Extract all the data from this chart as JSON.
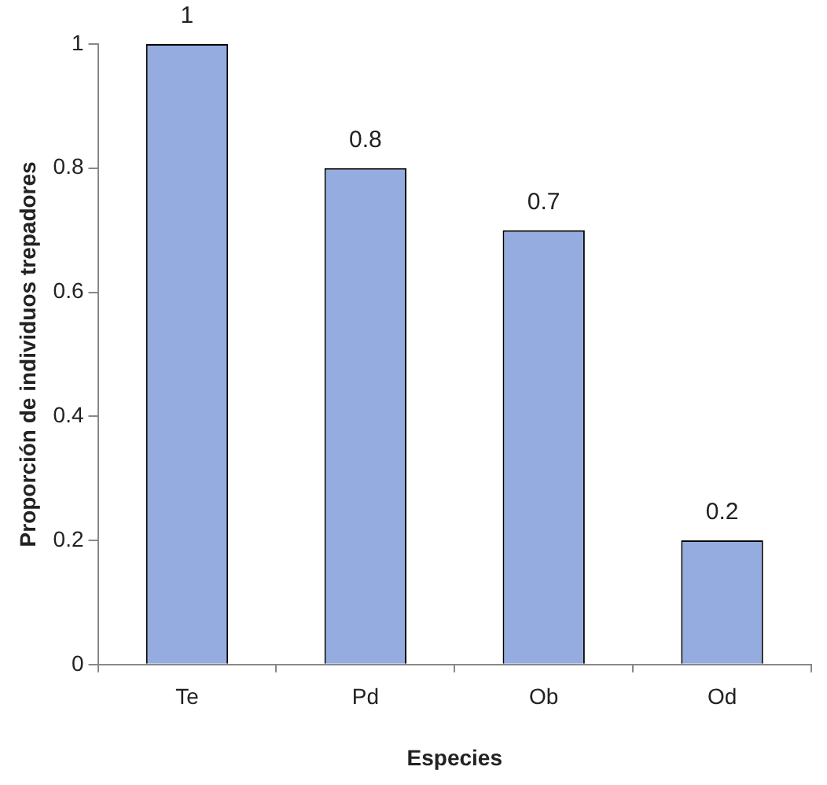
{
  "chart_data": {
    "type": "bar",
    "xlabel": "Especies",
    "ylabel": "Proporción de individuos trepadores",
    "categories": [
      "Te",
      "Pd",
      "Ob",
      "Od"
    ],
    "values": [
      1,
      0.8,
      0.7,
      0.2
    ],
    "color": "#94acdf",
    "ylim": [
      0,
      1
    ],
    "yticks": [
      0,
      0.2,
      0.4,
      0.6,
      0.8,
      1
    ],
    "grid": false,
    "legend": false,
    "data_labels": true
  }
}
